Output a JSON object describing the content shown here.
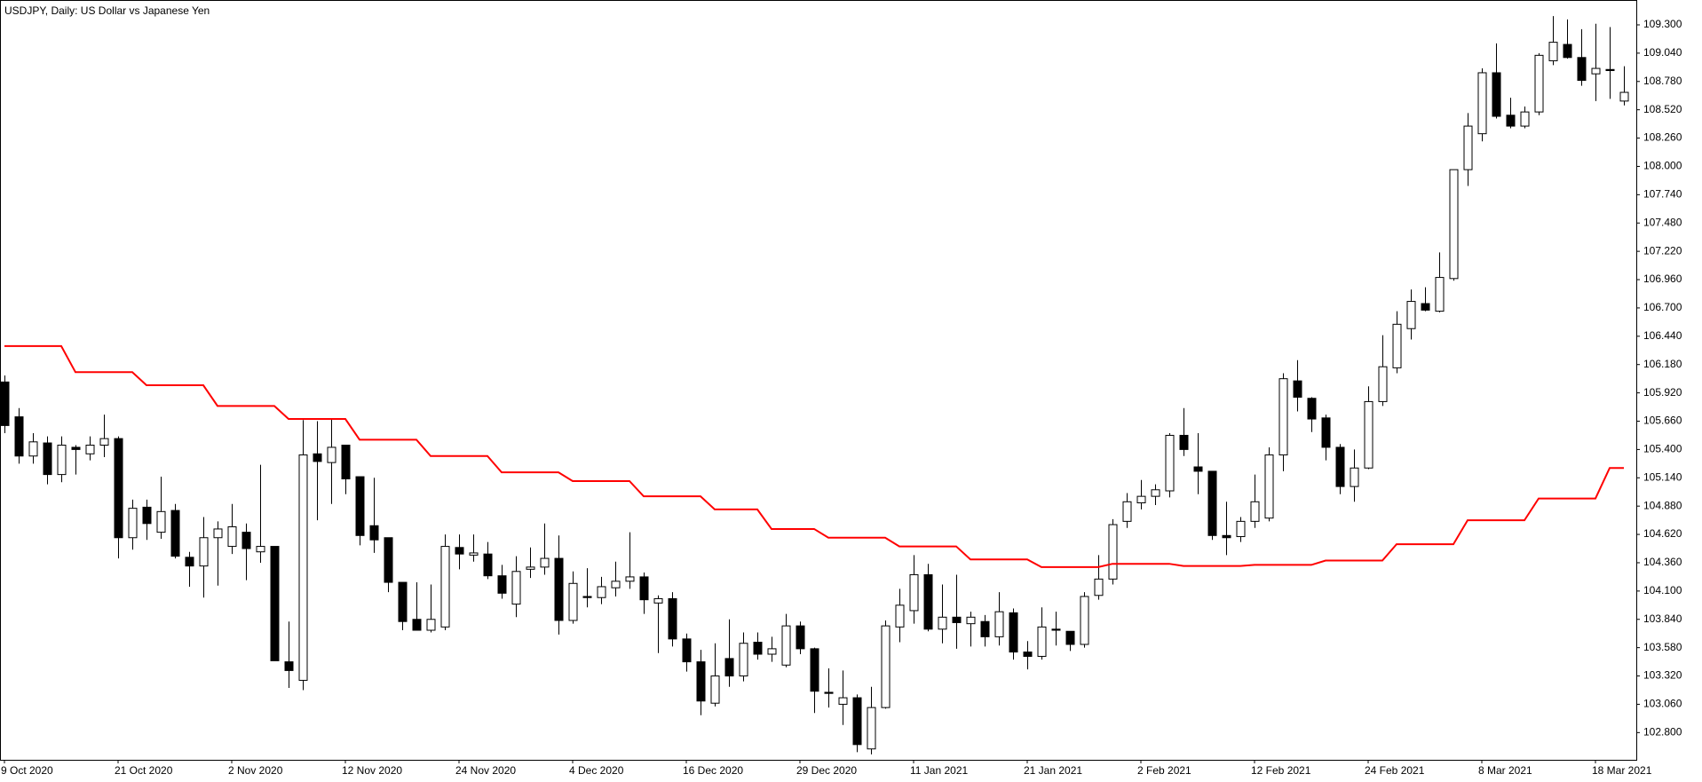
{
  "chart_data": {
    "type": "candlestick",
    "title": "USDJPY, Daily:  US Dollar vs Japanese Yen",
    "categories": [
      "9 Oct 2020",
      null,
      null,
      null,
      null,
      null,
      null,
      null,
      "21 Oct 2020",
      null,
      null,
      null,
      null,
      null,
      null,
      null,
      "2 Nov 2020",
      null,
      null,
      null,
      null,
      null,
      null,
      null,
      "12 Nov 2020",
      null,
      null,
      null,
      null,
      null,
      null,
      null,
      "24 Nov 2020",
      null,
      null,
      null,
      null,
      null,
      null,
      null,
      "4 Dec 2020",
      null,
      null,
      null,
      null,
      null,
      null,
      null,
      "16 Dec 2020",
      null,
      null,
      null,
      null,
      null,
      null,
      null,
      "29 Dec 2020",
      null,
      null,
      null,
      null,
      null,
      null,
      null,
      "11 Jan 2021",
      null,
      null,
      null,
      null,
      null,
      null,
      null,
      "21 Jan 2021",
      null,
      null,
      null,
      null,
      null,
      null,
      null,
      "2 Feb 2021",
      null,
      null,
      null,
      null,
      null,
      null,
      null,
      "12 Feb 2021",
      null,
      null,
      null,
      null,
      null,
      null,
      null,
      "24 Feb 2021",
      null,
      null,
      null,
      null,
      null,
      null,
      null,
      "8 Mar 2021",
      null,
      null,
      null,
      null,
      null,
      null,
      null,
      "18 Mar 2021",
      null,
      null
    ],
    "open": [
      106.02,
      105.7,
      105.34,
      105.46,
      105.17,
      105.42,
      105.36,
      105.44,
      105.5,
      104.59,
      104.87,
      104.64,
      104.84,
      104.41,
      104.33,
      104.59,
      104.51,
      104.64,
      104.46,
      104.51,
      103.45,
      103.28,
      105.36,
      105.28,
      105.44,
      105.15,
      104.7,
      104.59,
      104.18,
      103.84,
      103.74,
      103.77,
      104.5,
      104.43,
      104.44,
      104.24,
      103.98,
      104.3,
      104.32,
      104.4,
      103.83,
      104.05,
      104.04,
      104.13,
      104.19,
      104.23,
      103.99,
      104.03,
      103.66,
      103.45,
      103.07,
      103.48,
      103.32,
      103.63,
      103.52,
      103.42,
      103.78,
      103.57,
      103.17,
      103.06,
      103.12,
      102.65,
      103.03,
      103.77,
      103.92,
      104.25,
      103.75,
      103.86,
      103.8,
      103.82,
      103.68,
      103.9,
      103.54,
      103.5,
      103.75,
      103.73,
      103.61,
      104.06,
      104.21,
      104.74,
      104.91,
      104.97,
      105.02,
      105.53,
      105.24,
      105.2,
      104.61,
      104.6,
      104.74,
      104.77,
      105.35,
      106.03,
      105.87,
      105.69,
      105.42,
      105.06,
      105.23,
      105.84,
      106.15,
      106.51,
      106.74,
      106.67,
      106.97,
      107.97,
      108.3,
      108.86,
      108.47,
      108.37,
      108.5,
      108.97,
      109.12,
      109.0,
      108.85,
      108.89,
      108.6
    ],
    "high": [
      106.08,
      105.78,
      105.55,
      105.52,
      105.52,
      105.44,
      105.52,
      105.72,
      105.52,
      104.94,
      104.94,
      105.15,
      104.9,
      104.46,
      104.78,
      104.74,
      104.9,
      104.72,
      105.26,
      104.51,
      103.82,
      105.67,
      105.66,
      105.68,
      105.44,
      105.15,
      105.14,
      104.59,
      104.18,
      104.18,
      104.16,
      104.62,
      104.62,
      104.62,
      104.55,
      104.34,
      104.42,
      104.5,
      104.72,
      104.61,
      104.28,
      104.31,
      104.23,
      104.37,
      104.64,
      104.27,
      104.06,
      104.09,
      103.71,
      103.56,
      103.62,
      103.84,
      103.72,
      103.72,
      103.68,
      103.89,
      103.82,
      103.58,
      103.39,
      103.37,
      103.15,
      103.22,
      103.83,
      104.12,
      104.43,
      104.35,
      104.16,
      104.25,
      103.91,
      103.88,
      104.09,
      103.94,
      103.64,
      103.95,
      103.91,
      103.73,
      104.09,
      104.43,
      104.76,
      105.0,
      105.12,
      105.08,
      105.55,
      105.78,
      105.55,
      105.2,
      104.92,
      104.78,
      105.17,
      105.42,
      106.1,
      106.22,
      105.88,
      105.72,
      105.45,
      105.4,
      105.98,
      106.45,
      106.67,
      106.87,
      106.89,
      107.21,
      107.97,
      108.49,
      108.9,
      109.13,
      108.63,
      108.55,
      109.04,
      109.38,
      109.35,
      109.26,
      109.31,
      109.28,
      108.92
    ],
    "low": [
      105.55,
      105.27,
      105.27,
      105.08,
      105.1,
      105.17,
      105.3,
      105.33,
      104.4,
      104.48,
      104.57,
      104.58,
      104.4,
      104.14,
      104.04,
      104.15,
      104.44,
      104.2,
      104.36,
      103.46,
      103.21,
      103.19,
      104.75,
      104.9,
      104.99,
      104.52,
      104.45,
      104.09,
      103.74,
      103.74,
      103.72,
      103.74,
      104.3,
      104.37,
      104.21,
      104.03,
      103.86,
      104.22,
      104.25,
      103.7,
      103.8,
      103.95,
      103.98,
      104.05,
      104.12,
      103.89,
      103.53,
      103.59,
      103.36,
      102.96,
      103.04,
      103.22,
      103.27,
      103.47,
      103.45,
      103.4,
      103.52,
      102.98,
      103.03,
      102.87,
      102.62,
      102.6,
      103.02,
      103.63,
      103.8,
      103.73,
      103.62,
      103.57,
      103.59,
      103.59,
      103.6,
      103.47,
      103.38,
      103.47,
      103.6,
      103.55,
      103.58,
      104.02,
      104.16,
      104.68,
      104.85,
      104.89,
      104.96,
      105.34,
      104.99,
      104.57,
      104.43,
      104.55,
      104.68,
      104.74,
      105.2,
      105.75,
      105.56,
      105.3,
      104.99,
      104.92,
      105.22,
      105.8,
      106.1,
      106.41,
      106.67,
      106.66,
      106.95,
      107.82,
      108.23,
      108.44,
      108.35,
      108.35,
      108.47,
      108.93,
      108.99,
      108.74,
      108.6,
      108.62,
      108.56
    ],
    "close": [
      105.62,
      105.34,
      105.47,
      105.17,
      105.44,
      105.4,
      105.44,
      105.5,
      104.59,
      104.86,
      104.72,
      104.83,
      104.42,
      104.33,
      104.59,
      104.67,
      104.69,
      104.49,
      104.51,
      103.46,
      103.37,
      105.35,
      105.29,
      105.42,
      105.13,
      104.61,
      104.57,
      104.18,
      103.82,
      103.74,
      103.84,
      104.51,
      104.44,
      104.45,
      104.24,
      104.08,
      104.28,
      104.32,
      104.4,
      103.83,
      104.17,
      104.04,
      104.14,
      104.19,
      104.23,
      104.02,
      104.03,
      103.66,
      103.45,
      103.09,
      103.32,
      103.32,
      103.62,
      103.52,
      103.57,
      103.78,
      103.57,
      103.18,
      103.16,
      103.12,
      102.69,
      103.03,
      103.78,
      103.97,
      104.25,
      103.75,
      103.86,
      103.81,
      103.86,
      103.68,
      103.91,
      103.54,
      103.5,
      103.77,
      103.74,
      103.61,
      104.05,
      104.21,
      104.71,
      104.92,
      104.97,
      105.03,
      105.53,
      105.4,
      105.2,
      104.61,
      104.59,
      104.74,
      104.92,
      105.35,
      106.05,
      105.88,
      105.68,
      105.42,
      105.06,
      105.23,
      105.84,
      106.16,
      106.55,
      106.76,
      106.68,
      106.98,
      107.97,
      108.37,
      108.86,
      108.46,
      108.37,
      108.5,
      109.02,
      109.14,
      109.0,
      108.79,
      108.9,
      108.88,
      108.68
    ],
    "up_color": "#ffffff",
    "down_color": "#000000",
    "wick_color": "#000000",
    "overlay": {
      "color": "#ff0000",
      "values": [
        106.35,
        106.35,
        106.35,
        106.35,
        106.35,
        106.11,
        106.11,
        106.11,
        106.11,
        106.11,
        105.99,
        105.99,
        105.99,
        105.99,
        105.99,
        105.8,
        105.8,
        105.8,
        105.8,
        105.8,
        105.68,
        105.68,
        105.68,
        105.68,
        105.68,
        105.49,
        105.49,
        105.49,
        105.49,
        105.49,
        105.34,
        105.34,
        105.34,
        105.34,
        105.34,
        105.19,
        105.19,
        105.19,
        105.19,
        105.19,
        105.11,
        105.11,
        105.11,
        105.11,
        105.11,
        104.97,
        104.97,
        104.97,
        104.97,
        104.97,
        104.85,
        104.85,
        104.85,
        104.85,
        104.67,
        104.67,
        104.67,
        104.67,
        104.59,
        104.59,
        104.59,
        104.59,
        104.59,
        104.51,
        104.51,
        104.51,
        104.51,
        104.51,
        104.39,
        104.39,
        104.39,
        104.39,
        104.39,
        104.32,
        104.32,
        104.32,
        104.32,
        104.32,
        104.35,
        104.35,
        104.35,
        104.35,
        104.35,
        104.33,
        104.33,
        104.33,
        104.33,
        104.33,
        104.34,
        104.34,
        104.34,
        104.34,
        104.34,
        104.38,
        104.38,
        104.38,
        104.38,
        104.38,
        104.53,
        104.53,
        104.53,
        104.53,
        104.53,
        104.75,
        104.75,
        104.75,
        104.75,
        104.75,
        104.95,
        104.95,
        104.95,
        104.95,
        104.95,
        105.23,
        105.23
      ]
    },
    "ylim": [
      102.55,
      109.52
    ],
    "yticks": [
      {
        "value": 102.8,
        "label": "102.800"
      },
      {
        "value": 103.06,
        "label": "103.060"
      },
      {
        "value": 103.32,
        "label": "103.320"
      },
      {
        "value": 103.58,
        "label": "103.580"
      },
      {
        "value": 103.84,
        "label": "103.840"
      },
      {
        "value": 104.1,
        "label": "104.100"
      },
      {
        "value": 104.36,
        "label": "104.360"
      },
      {
        "value": 104.62,
        "label": "104.620"
      },
      {
        "value": 104.88,
        "label": "104.880"
      },
      {
        "value": 105.14,
        "label": "105.140"
      },
      {
        "value": 105.4,
        "label": "105.400"
      },
      {
        "value": 105.66,
        "label": "105.660"
      },
      {
        "value": 105.92,
        "label": "105.920"
      },
      {
        "value": 106.18,
        "label": "106.180"
      },
      {
        "value": 106.44,
        "label": "106.440"
      },
      {
        "value": 106.7,
        "label": "106.700"
      },
      {
        "value": 106.96,
        "label": "106.960"
      },
      {
        "value": 107.22,
        "label": "107.220"
      },
      {
        "value": 107.48,
        "label": "107.480"
      },
      {
        "value": 107.74,
        "label": "107.740"
      },
      {
        "value": 108.0,
        "label": "108.000"
      },
      {
        "value": 108.26,
        "label": "108.260"
      },
      {
        "value": 108.52,
        "label": "108.520"
      },
      {
        "value": 108.78,
        "label": "108.780"
      },
      {
        "value": 109.04,
        "label": "109.040"
      },
      {
        "value": 109.3,
        "label": "109.300"
      }
    ],
    "grid": false
  }
}
